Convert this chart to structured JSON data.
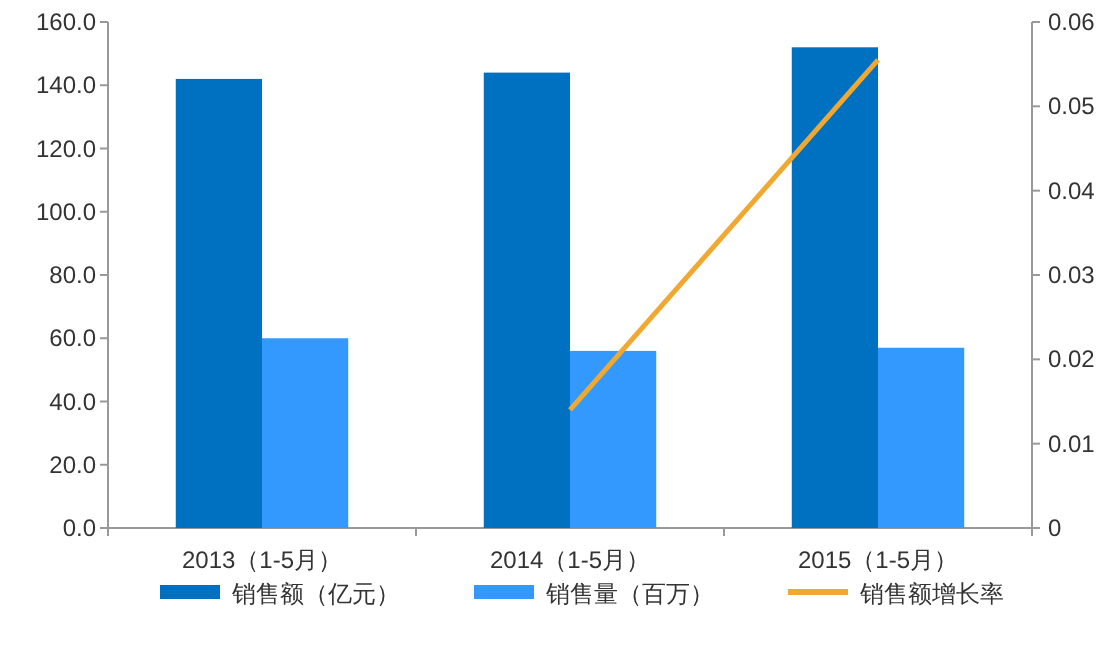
{
  "chart_data": {
    "type": "bar",
    "categories": [
      "2013（1-5月）",
      "2014（1-5月）",
      "2015（1-5月）"
    ],
    "series": [
      {
        "name": "销售额（亿元）",
        "color": "#0070c0",
        "values": [
          142,
          144,
          152
        ]
      },
      {
        "name": "销售量（百万）",
        "color": "#3399ff",
        "values": [
          60,
          56,
          57
        ]
      },
      {
        "name": "销售额增长率",
        "type": "line",
        "axis": "y2",
        "color": "#f0a830",
        "values": [
          null,
          0.014,
          0.0555
        ]
      }
    ],
    "ylim": [
      0,
      160
    ],
    "yticks": [
      {
        "value": 0,
        "label": "0.0"
      },
      {
        "value": 20,
        "label": "20.0"
      },
      {
        "value": 40,
        "label": "40.0"
      },
      {
        "value": 60,
        "label": "60.0"
      },
      {
        "value": 80,
        "label": "80.0"
      },
      {
        "value": 100,
        "label": "100.0"
      },
      {
        "value": 120,
        "label": "120.0"
      },
      {
        "value": 140,
        "label": "140.0"
      },
      {
        "value": 160,
        "label": "160.0"
      }
    ],
    "y2lim": [
      0,
      0.06
    ],
    "y2ticks": [
      0,
      0.01,
      0.02,
      0.03,
      0.04,
      0.05,
      0.06
    ],
    "legend": "bottom"
  }
}
